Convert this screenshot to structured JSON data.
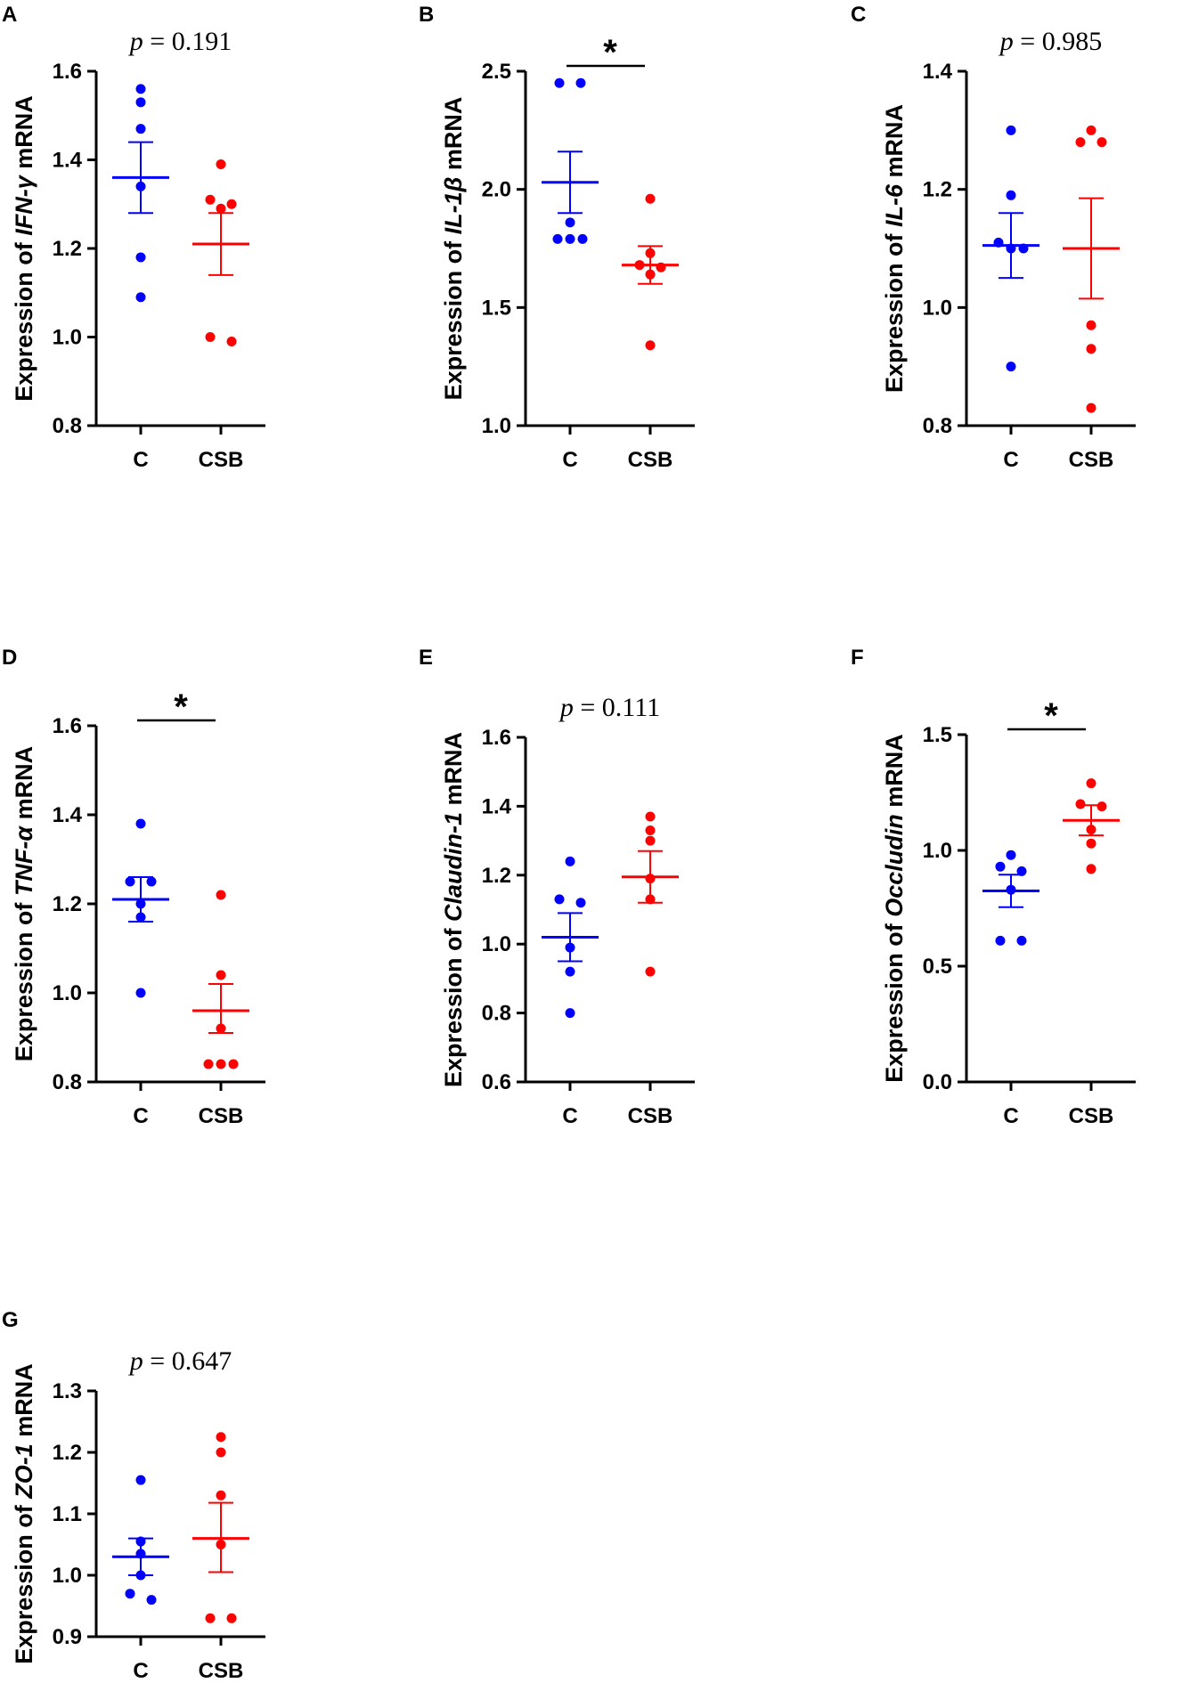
{
  "colors": {
    "C": "#0000ff",
    "CSB": "#ff0000",
    "axis": "#000000"
  },
  "chart_data": [
    {
      "panel": "A",
      "type": "scatter",
      "ylabel_prefix": "Expression of ",
      "ylabel_gene": "IFN-γ",
      "ylabel_suffix": " mRNA",
      "categories": [
        "C",
        "CSB"
      ],
      "ylim": [
        0.8,
        1.6
      ],
      "yticks": [
        0.8,
        1.0,
        1.2,
        1.4,
        1.6
      ],
      "tick_decimals": 1,
      "annotation": {
        "kind": "p",
        "p_symbol": "p",
        "p_text": " = 0.191"
      },
      "series": [
        {
          "name": "C",
          "values": [
            1.56,
            1.53,
            1.47,
            1.34,
            1.18,
            1.09
          ],
          "mean": 1.36,
          "sem_low": 1.28,
          "sem_high": 1.44
        },
        {
          "name": "CSB",
          "values": [
            1.39,
            1.31,
            1.3,
            1.29,
            1.0,
            0.99
          ],
          "mean": 1.21,
          "sem_low": 1.14,
          "sem_high": 1.28
        }
      ]
    },
    {
      "panel": "B",
      "type": "scatter",
      "ylabel_prefix": "Expression of ",
      "ylabel_gene": "IL-1β",
      "ylabel_suffix": " mRNA",
      "categories": [
        "C",
        "CSB"
      ],
      "ylim": [
        1.0,
        2.5
      ],
      "yticks": [
        1.0,
        1.5,
        2.0,
        2.5
      ],
      "tick_decimals": 1,
      "annotation": {
        "kind": "star",
        "text": "*"
      },
      "series": [
        {
          "name": "C",
          "values": [
            2.45,
            2.45,
            1.86,
            1.79,
            1.79,
            1.79
          ],
          "mean": 2.03,
          "sem_low": 1.9,
          "sem_high": 2.16
        },
        {
          "name": "CSB",
          "values": [
            1.96,
            1.73,
            1.68,
            1.67,
            1.64,
            1.34
          ],
          "mean": 1.68,
          "sem_low": 1.6,
          "sem_high": 1.76
        }
      ]
    },
    {
      "panel": "C",
      "type": "scatter",
      "ylabel_prefix": "Expression of ",
      "ylabel_gene": "IL-6",
      "ylabel_suffix": " mRNA",
      "categories": [
        "C",
        "CSB"
      ],
      "ylim": [
        0.8,
        1.4
      ],
      "yticks": [
        0.8,
        1.0,
        1.2,
        1.4
      ],
      "tick_decimals": 1,
      "annotation": {
        "kind": "p",
        "p_symbol": "p",
        "p_text": " = 0.985"
      },
      "series": [
        {
          "name": "C",
          "values": [
            1.3,
            1.19,
            1.11,
            1.1,
            1.1,
            0.9
          ],
          "mean": 1.105,
          "sem_low": 1.05,
          "sem_high": 1.16
        },
        {
          "name": "CSB",
          "values": [
            1.3,
            1.28,
            1.28,
            0.97,
            0.93,
            0.83
          ],
          "mean": 1.1,
          "sem_low": 1.015,
          "sem_high": 1.185
        }
      ]
    },
    {
      "panel": "D",
      "type": "scatter",
      "ylabel_prefix": "Expression of ",
      "ylabel_gene": "TNF-α",
      "ylabel_suffix": " mRNA",
      "categories": [
        "C",
        "CSB"
      ],
      "ylim": [
        0.8,
        1.6
      ],
      "yticks": [
        0.8,
        1.0,
        1.2,
        1.4,
        1.6
      ],
      "tick_decimals": 1,
      "annotation": {
        "kind": "star",
        "text": "*"
      },
      "series": [
        {
          "name": "C",
          "values": [
            1.38,
            1.25,
            1.25,
            1.2,
            1.17,
            1.0
          ],
          "mean": 1.21,
          "sem_low": 1.16,
          "sem_high": 1.26
        },
        {
          "name": "CSB",
          "values": [
            1.22,
            1.04,
            0.92,
            0.84,
            0.84,
            0.84
          ],
          "mean": 0.96,
          "sem_low": 0.91,
          "sem_high": 1.02
        }
      ]
    },
    {
      "panel": "E",
      "type": "scatter",
      "ylabel_prefix": "Expression of ",
      "ylabel_gene": "Claudin-1",
      "ylabel_suffix": " mRNA",
      "categories": [
        "C",
        "CSB"
      ],
      "ylim": [
        0.6,
        1.6
      ],
      "yticks": [
        0.6,
        0.8,
        1.0,
        1.2,
        1.4,
        1.6
      ],
      "tick_decimals": 1,
      "annotation": {
        "kind": "p",
        "p_symbol": "p",
        "p_text": " = 0.111"
      },
      "series": [
        {
          "name": "C",
          "values": [
            1.24,
            1.13,
            1.12,
            0.99,
            0.92,
            0.8
          ],
          "mean": 1.02,
          "sem_low": 0.95,
          "sem_high": 1.09
        },
        {
          "name": "CSB",
          "values": [
            1.37,
            1.33,
            1.3,
            1.19,
            1.13,
            0.92
          ],
          "mean": 1.195,
          "sem_low": 1.12,
          "sem_high": 1.27
        }
      ]
    },
    {
      "panel": "F",
      "type": "scatter",
      "ylabel_prefix": "Expression of ",
      "ylabel_gene": "Occludin",
      "ylabel_suffix": " mRNA",
      "categories": [
        "C",
        "CSB"
      ],
      "ylim": [
        0.0,
        1.5
      ],
      "yticks": [
        0.0,
        0.5,
        1.0,
        1.5
      ],
      "tick_decimals": 1,
      "annotation": {
        "kind": "star",
        "text": "*"
      },
      "series": [
        {
          "name": "C",
          "values": [
            0.98,
            0.93,
            0.91,
            0.83,
            0.61,
            0.61
          ],
          "mean": 0.825,
          "sem_low": 0.755,
          "sem_high": 0.895
        },
        {
          "name": "CSB",
          "values": [
            1.29,
            1.2,
            1.19,
            1.09,
            1.03,
            0.92
          ],
          "mean": 1.13,
          "sem_low": 1.065,
          "sem_high": 1.195
        }
      ]
    },
    {
      "panel": "G",
      "type": "scatter",
      "ylabel_prefix": "Expression of ",
      "ylabel_gene": "ZO-1",
      "ylabel_suffix": " mRNA",
      "categories": [
        "C",
        "CSB"
      ],
      "ylim": [
        0.9,
        1.3
      ],
      "yticks": [
        0.9,
        1.0,
        1.1,
        1.2,
        1.3
      ],
      "tick_decimals": 1,
      "annotation": {
        "kind": "p",
        "p_symbol": "p",
        "p_text": " = 0.647"
      },
      "series": [
        {
          "name": "C",
          "values": [
            1.155,
            1.055,
            1.035,
            1.0,
            0.97,
            0.96
          ],
          "mean": 1.03,
          "sem_low": 1.0,
          "sem_high": 1.06
        },
        {
          "name": "CSB",
          "values": [
            1.225,
            1.2,
            1.13,
            1.05,
            0.93,
            0.93
          ],
          "mean": 1.06,
          "sem_low": 1.005,
          "sem_high": 1.118
        }
      ]
    }
  ]
}
